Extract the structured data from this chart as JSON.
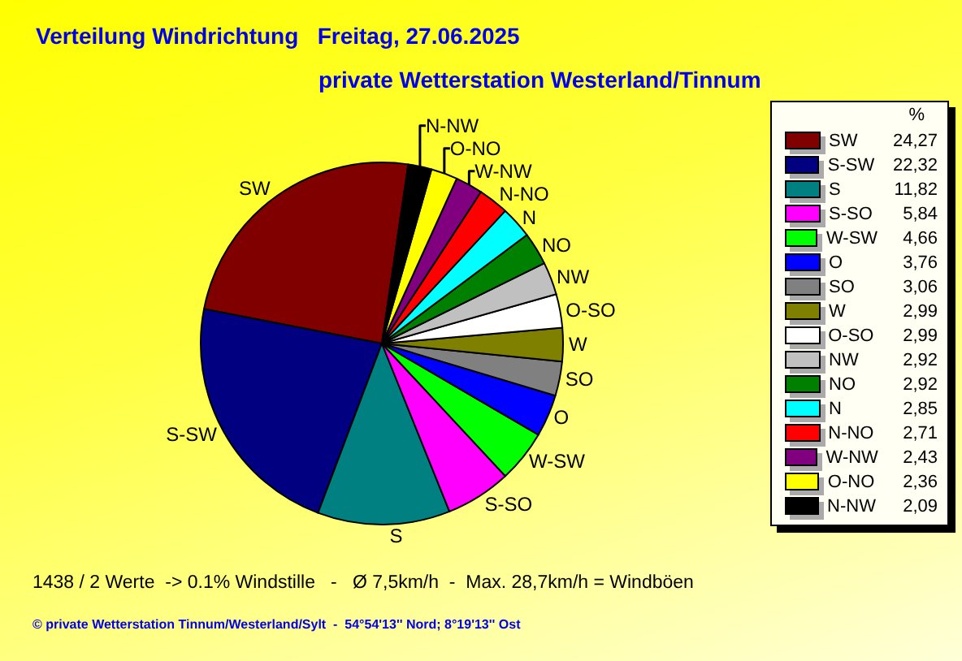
{
  "chart_data": {
    "type": "pie",
    "title": "Verteilung Windrichtung   Freitag, 27.06.2025",
    "subtitle": "private Wetterstation Westerland/Tinnum",
    "categories": [
      "SW",
      "S-SW",
      "S",
      "S-SO",
      "W-SW",
      "O",
      "SO",
      "W",
      "O-SO",
      "NW",
      "NO",
      "N",
      "N-NO",
      "W-NW",
      "O-NO",
      "N-NW"
    ],
    "values": [
      24.27,
      22.32,
      11.82,
      5.84,
      4.66,
      3.76,
      3.06,
      2.99,
      2.99,
      2.92,
      2.92,
      2.85,
      2.71,
      2.43,
      2.36,
      2.09
    ],
    "value_labels": [
      "24,27",
      "22,32",
      "11,82",
      "5,84",
      "4,66",
      "3,76",
      "3,06",
      "2,99",
      "2,99",
      "2,92",
      "2,92",
      "2,85",
      "2,71",
      "2,43",
      "2,36",
      "2,09"
    ],
    "colors": [
      "#800000",
      "#000080",
      "#008080",
      "#ff00ff",
      "#00ff00",
      "#0000ff",
      "#808080",
      "#808000",
      "#ffffff",
      "#c0c0c0",
      "#008000",
      "#00ffff",
      "#ff0000",
      "#800080",
      "#ffff00",
      "#000000"
    ],
    "legend": "right",
    "legend_title": "%",
    "annotations": [
      "1438 / 2 Werte  -> 0.1% Windstille   -   Ø 7,5km/h  -  Max. 28,7km/h = Windböen",
      "© private Wetterstation Tinnum/Westerland/Sylt  -  54°54'13'' Nord; 8°19'13'' Ost"
    ]
  }
}
